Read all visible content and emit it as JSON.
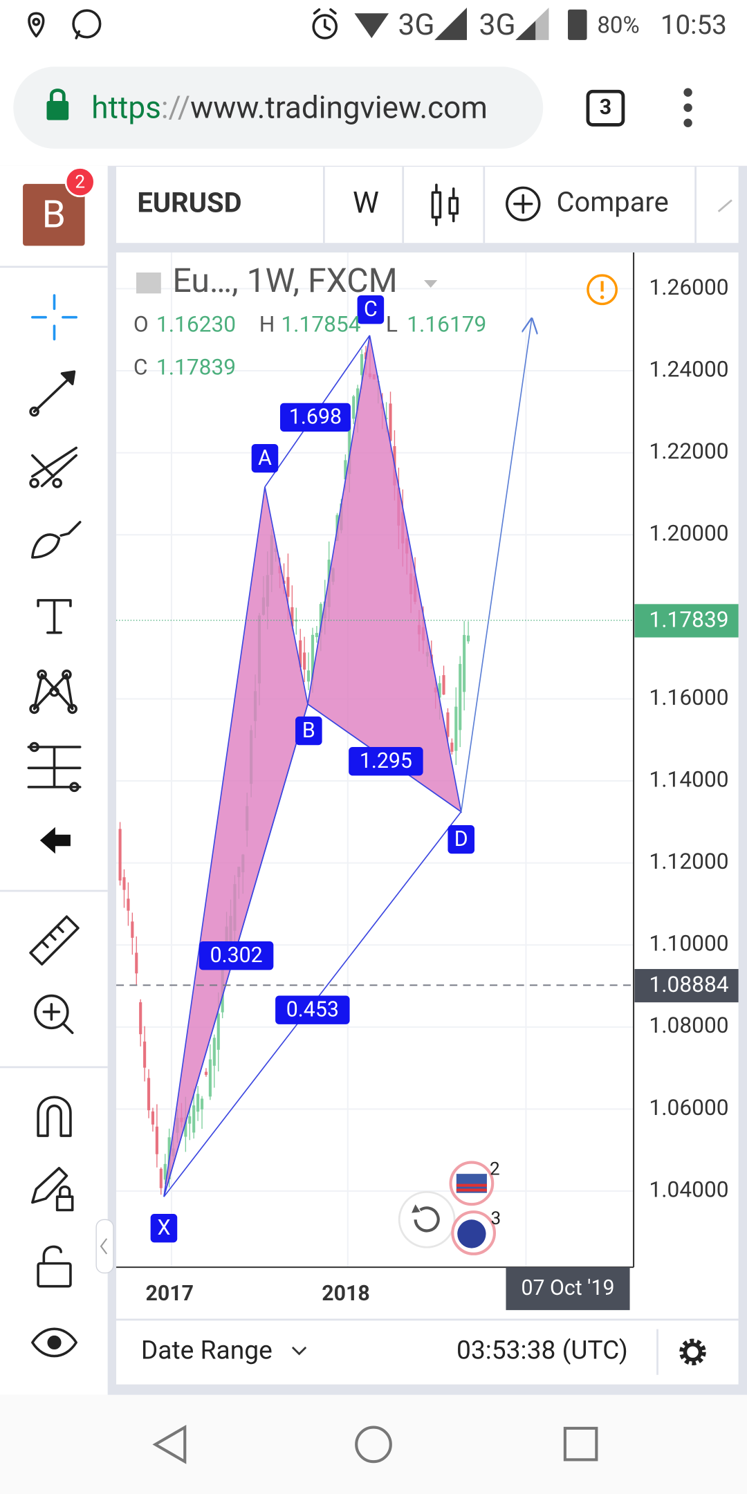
{
  "status_bar": {
    "network_1": "3G",
    "network_2": "3G",
    "battery": "80%",
    "time": "10:53"
  },
  "browser": {
    "url_scheme": "https",
    "url_separator": "://",
    "url_host": "www.tradingview.com",
    "tab_count": "3"
  },
  "sidebar": {
    "avatar_letter": "B",
    "notifications": "2"
  },
  "toolbar": {
    "symbol": "EURUSD",
    "interval": "W",
    "compare": "Compare"
  },
  "chart": {
    "legend_title": "Eu…, 1W, FXCM",
    "ohlc": [
      {
        "label": "O",
        "value": "1.16230"
      },
      {
        "label": "H",
        "value": "1.17854"
      },
      {
        "label": "L",
        "value": "1.16179"
      },
      {
        "label": "C",
        "value": "1.17839"
      }
    ],
    "price_axis": [
      "1.26000",
      "1.24000",
      "1.22000",
      "1.20000",
      "1.16000",
      "1.14000",
      "1.12000",
      "1.10000",
      "1.08000",
      "1.06000",
      "1.04000"
    ],
    "last_price": "1.17839",
    "line_price": "1.08884",
    "points": [
      "X",
      "A",
      "B",
      "C",
      "D"
    ],
    "ratios": [
      "1.698",
      "0.302",
      "1.295",
      "0.453"
    ],
    "time_axis": [
      "2017",
      "2018"
    ],
    "crosshair_date": "07 Oct '19",
    "event_badges": [
      "2",
      "3"
    ]
  },
  "footer": {
    "date_range": "Date Range",
    "clock": "03:53:38 (UTC)"
  }
}
